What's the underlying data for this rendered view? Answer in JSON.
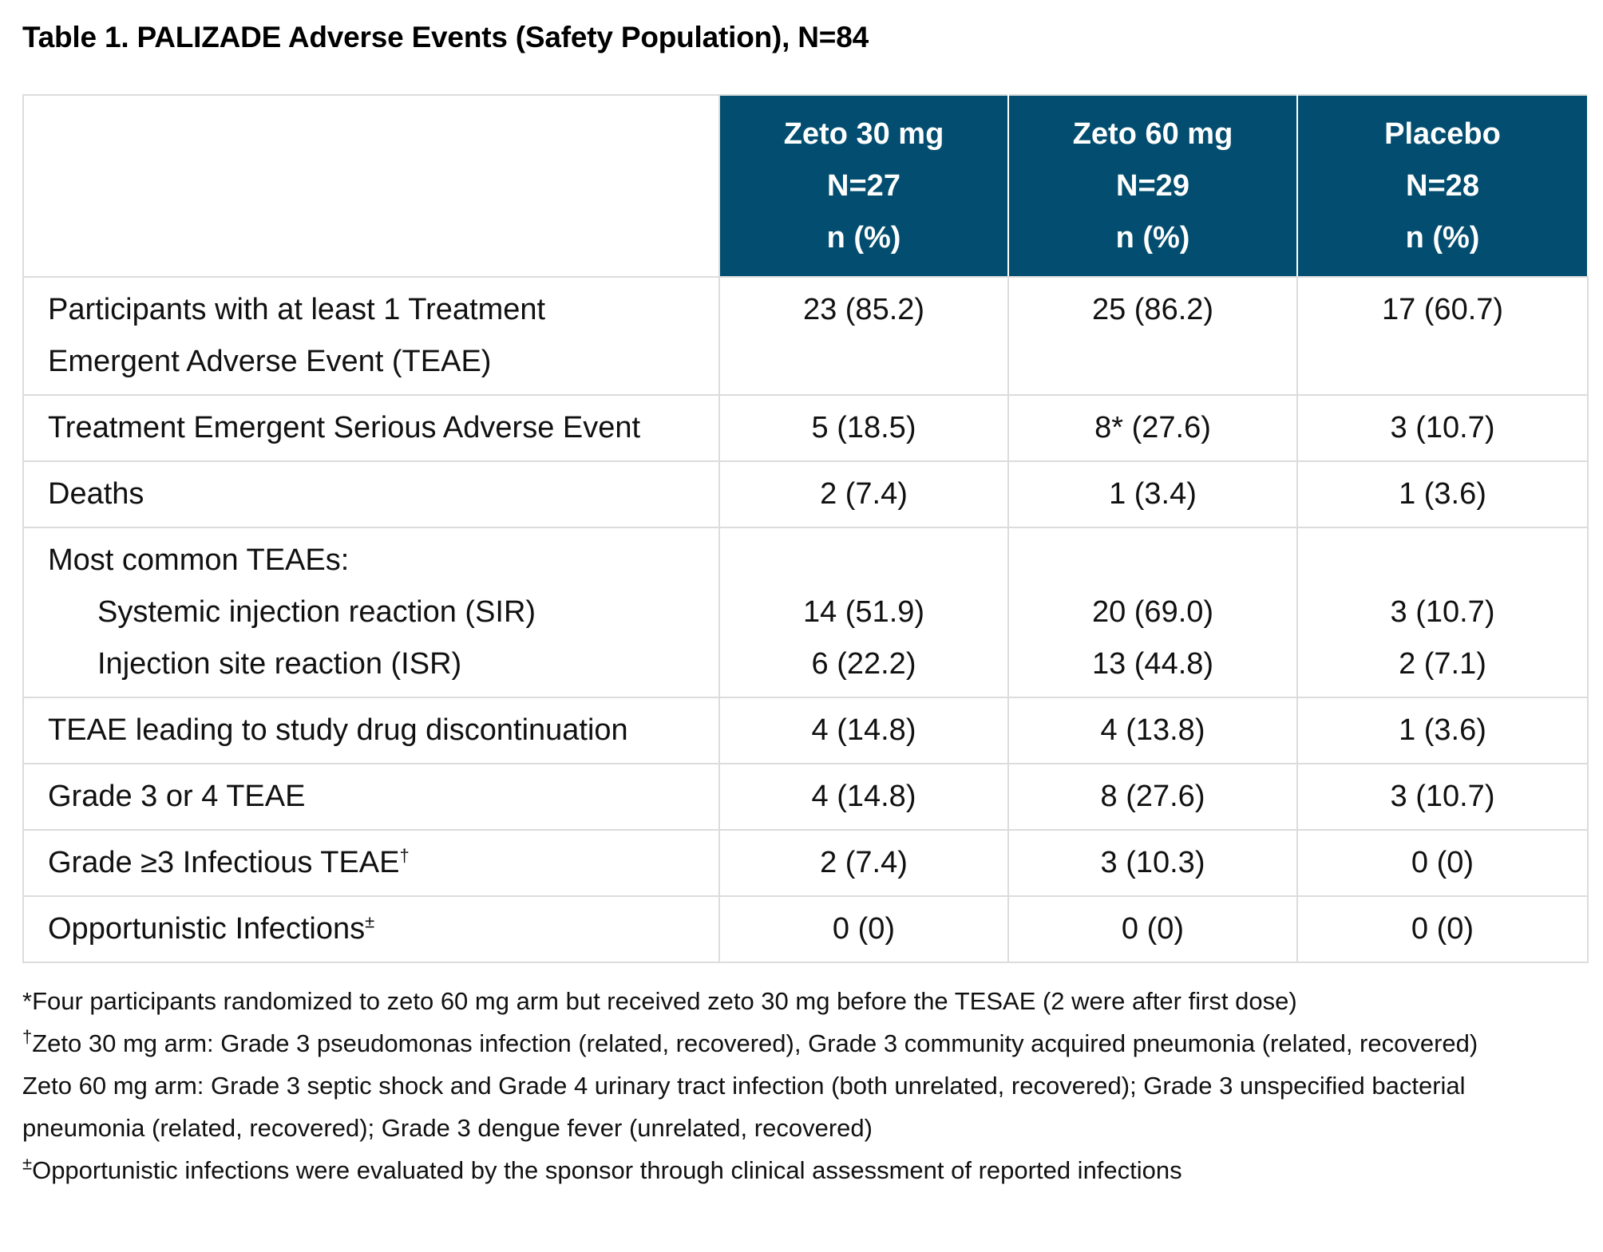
{
  "title": "Table 1. PALIZADE Adverse Events (Safety Population), N=84",
  "columns": [
    {
      "name": "Zeto 30 mg",
      "n": "N=27",
      "unit": "n (%)"
    },
    {
      "name": "Zeto 60 mg",
      "n": "N=29",
      "unit": "n (%)"
    },
    {
      "name": "Placebo",
      "n": "N=28",
      "unit": "n (%)"
    }
  ],
  "rows": [
    {
      "label_line1": "Participants with at least 1 Treatment",
      "label_line2": "Emergent Adverse Event (TEAE)",
      "values": [
        "23 (85.2)",
        "25 (86.2)",
        "17 (60.7)"
      ]
    },
    {
      "label": "Treatment Emergent Serious Adverse Event",
      "values": [
        "5 (18.5)",
        "8* (27.6)",
        "3 (10.7)"
      ]
    },
    {
      "label": "Deaths",
      "values": [
        "2 (7.4)",
        "1 (3.4)",
        "1 (3.6)"
      ]
    },
    {
      "label": "Most common TEAEs:",
      "subrows": [
        {
          "label": "Systemic injection reaction (SIR)",
          "values": [
            "14 (51.9)",
            "20 (69.0)",
            "3 (10.7)"
          ]
        },
        {
          "label": "Injection site reaction (ISR)",
          "values": [
            "6 (22.2)",
            "13 (44.8)",
            "2 (7.1)"
          ]
        }
      ]
    },
    {
      "label": "TEAE leading to study drug discontinuation",
      "values": [
        "4 (14.8)",
        "4 (13.8)",
        "1 (3.6)"
      ]
    },
    {
      "label": "Grade 3 or 4 TEAE",
      "values": [
        "4 (14.8)",
        "8 (27.6)",
        "3 (10.7)"
      ]
    },
    {
      "label": "Grade ≥3 Infectious TEAE",
      "mark": "†",
      "values": [
        "2 (7.4)",
        "3 (10.3)",
        "0 (0)"
      ]
    },
    {
      "label": "Opportunistic Infections",
      "mark": "±",
      "values": [
        "0 (0)",
        "0 (0)",
        "0 (0)"
      ]
    }
  ],
  "footnotes": {
    "f1": "*Four participants randomized to zeto 60 mg arm but received zeto 30 mg before the TESAE (2 were after first dose)",
    "f2_mark": "†",
    "f2": "Zeto 30 mg arm: Grade 3 pseudomonas infection (related, recovered), Grade 3 community acquired pneumonia (related, recovered)",
    "f3": "Zeto 60 mg arm: Grade 3 septic shock and Grade 4 urinary tract infection (both unrelated, recovered); Grade 3 unspecified bacterial pneumonia (related, recovered); Grade 3 dengue fever (unrelated, recovered)",
    "f4_mark": "±",
    "f4": "Opportunistic infections were evaluated by the sponsor through clinical assessment of reported infections"
  },
  "colors": {
    "header_bg": "#034e70",
    "header_text": "#ffffff",
    "border": "#dcdcdc"
  }
}
